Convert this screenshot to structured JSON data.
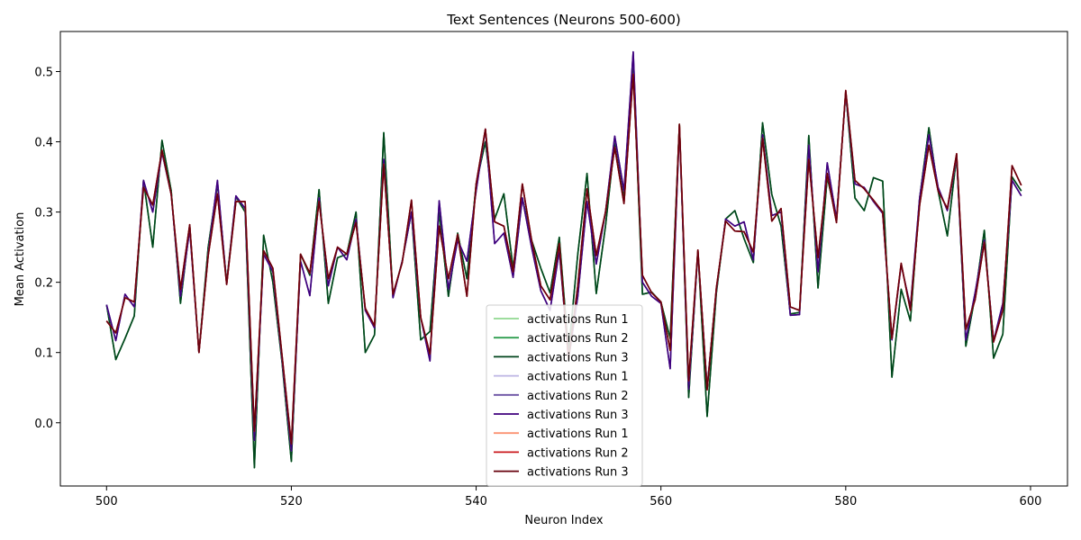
{
  "chart_data": {
    "type": "line",
    "title": "Text Sentences (Neurons 500-600)",
    "xlabel": "Neuron Index",
    "ylabel": "Mean Activation",
    "xlim": [
      495,
      604
    ],
    "ylim": [
      -0.09,
      0.557
    ],
    "xticks": [
      500,
      520,
      540,
      560,
      580,
      600
    ],
    "yticks": [
      0.0,
      0.1,
      0.2,
      0.3,
      0.4,
      0.5
    ],
    "ytick_labels": [
      "0.0",
      "0.1",
      "0.2",
      "0.3",
      "0.4",
      "0.5"
    ],
    "grid": false,
    "legend_position": "lower center",
    "x_start": 500,
    "series": [
      {
        "name": "activations Run 1",
        "color": "#90d890",
        "values": [
          0.168,
          0.09,
          0.12,
          0.152,
          0.345,
          0.25,
          0.402,
          0.33,
          0.17,
          0.28,
          0.1,
          0.25,
          0.34,
          0.2,
          0.322,
          0.3,
          -0.064,
          0.267,
          0.2,
          0.085,
          -0.055,
          0.24,
          0.21,
          0.332,
          0.17,
          0.235,
          0.24,
          0.3,
          0.1,
          0.125,
          0.413,
          0.18,
          0.23,
          0.3,
          0.118,
          0.13,
          0.3,
          0.18,
          0.27,
          0.205,
          0.34,
          0.4,
          0.29,
          0.326,
          0.22,
          0.32,
          0.26,
          0.22,
          0.185,
          0.264,
          0.1,
          0.24,
          0.355,
          0.184,
          0.28,
          0.4,
          0.32,
          0.51,
          0.183,
          0.186,
          0.172,
          0.12,
          0.425,
          0.036,
          0.245,
          0.009,
          0.185,
          0.29,
          0.302,
          0.262,
          0.228,
          0.427,
          0.325,
          0.28,
          0.155,
          0.157,
          0.409,
          0.192,
          0.35,
          0.29,
          0.47,
          0.32,
          0.302,
          0.349,
          0.344,
          0.065,
          0.19,
          0.145,
          0.32,
          0.42,
          0.33,
          0.266,
          0.38,
          0.109,
          0.18,
          0.274,
          0.092,
          0.126,
          0.35,
          0.33
        ]
      },
      {
        "name": "activations Run 2",
        "color": "#2e9e4f",
        "values": [
          0.168,
          0.09,
          0.12,
          0.152,
          0.345,
          0.25,
          0.402,
          0.33,
          0.17,
          0.28,
          0.1,
          0.25,
          0.34,
          0.2,
          0.322,
          0.3,
          -0.064,
          0.267,
          0.2,
          0.085,
          -0.055,
          0.24,
          0.21,
          0.332,
          0.17,
          0.235,
          0.24,
          0.3,
          0.1,
          0.125,
          0.413,
          0.18,
          0.23,
          0.3,
          0.118,
          0.13,
          0.3,
          0.18,
          0.27,
          0.205,
          0.34,
          0.4,
          0.29,
          0.326,
          0.22,
          0.32,
          0.26,
          0.22,
          0.185,
          0.264,
          0.1,
          0.24,
          0.355,
          0.184,
          0.28,
          0.4,
          0.32,
          0.51,
          0.183,
          0.186,
          0.172,
          0.12,
          0.425,
          0.036,
          0.245,
          0.009,
          0.185,
          0.29,
          0.302,
          0.262,
          0.228,
          0.427,
          0.325,
          0.28,
          0.155,
          0.157,
          0.409,
          0.192,
          0.35,
          0.29,
          0.47,
          0.32,
          0.302,
          0.349,
          0.344,
          0.065,
          0.19,
          0.145,
          0.32,
          0.42,
          0.33,
          0.266,
          0.38,
          0.109,
          0.18,
          0.274,
          0.092,
          0.126,
          0.35,
          0.33
        ]
      },
      {
        "name": "activations Run 3",
        "color": "#00441b",
        "values": [
          0.168,
          0.09,
          0.12,
          0.152,
          0.345,
          0.25,
          0.402,
          0.33,
          0.17,
          0.28,
          0.1,
          0.25,
          0.34,
          0.2,
          0.322,
          0.3,
          -0.064,
          0.267,
          0.2,
          0.085,
          -0.055,
          0.24,
          0.21,
          0.332,
          0.17,
          0.235,
          0.24,
          0.3,
          0.1,
          0.125,
          0.413,
          0.18,
          0.23,
          0.3,
          0.118,
          0.13,
          0.3,
          0.18,
          0.27,
          0.205,
          0.34,
          0.4,
          0.29,
          0.326,
          0.22,
          0.32,
          0.26,
          0.22,
          0.185,
          0.264,
          0.1,
          0.24,
          0.355,
          0.184,
          0.28,
          0.4,
          0.32,
          0.51,
          0.183,
          0.186,
          0.172,
          0.12,
          0.425,
          0.036,
          0.245,
          0.009,
          0.185,
          0.29,
          0.302,
          0.262,
          0.228,
          0.427,
          0.325,
          0.28,
          0.155,
          0.157,
          0.409,
          0.192,
          0.35,
          0.29,
          0.47,
          0.32,
          0.302,
          0.349,
          0.344,
          0.065,
          0.19,
          0.145,
          0.32,
          0.42,
          0.33,
          0.266,
          0.38,
          0.109,
          0.18,
          0.274,
          0.092,
          0.126,
          0.35,
          0.33
        ]
      },
      {
        "name": "activations Run 1",
        "color": "#bcb4e3",
        "values": [
          0.168,
          0.117,
          0.183,
          0.165,
          0.345,
          0.3,
          0.385,
          0.325,
          0.18,
          0.275,
          0.1,
          0.24,
          0.345,
          0.197,
          0.323,
          0.305,
          -0.025,
          0.24,
          0.215,
          0.09,
          -0.04,
          0.23,
          0.181,
          0.32,
          0.195,
          0.25,
          0.232,
          0.29,
          0.16,
          0.135,
          0.375,
          0.178,
          0.23,
          0.3,
          0.15,
          0.088,
          0.316,
          0.19,
          0.26,
          0.23,
          0.33,
          0.418,
          0.255,
          0.27,
          0.207,
          0.32,
          0.25,
          0.188,
          0.16,
          0.245,
          0.09,
          0.18,
          0.315,
          0.226,
          0.3,
          0.408,
          0.33,
          0.528,
          0.2,
          0.18,
          0.17,
          0.077,
          0.42,
          0.048,
          0.243,
          0.05,
          0.19,
          0.29,
          0.28,
          0.286,
          0.232,
          0.41,
          0.295,
          0.3,
          0.153,
          0.154,
          0.395,
          0.215,
          0.37,
          0.29,
          0.47,
          0.34,
          0.335,
          0.315,
          0.298,
          0.118,
          0.225,
          0.165,
          0.32,
          0.41,
          0.335,
          0.302,
          0.38,
          0.118,
          0.185,
          0.26,
          0.116,
          0.17,
          0.345,
          0.323
        ]
      },
      {
        "name": "activations Run 2",
        "color": "#6a51a3",
        "values": [
          0.168,
          0.117,
          0.183,
          0.165,
          0.345,
          0.3,
          0.385,
          0.325,
          0.18,
          0.275,
          0.1,
          0.24,
          0.345,
          0.197,
          0.323,
          0.305,
          -0.025,
          0.24,
          0.215,
          0.09,
          -0.04,
          0.23,
          0.181,
          0.32,
          0.195,
          0.25,
          0.232,
          0.29,
          0.16,
          0.135,
          0.375,
          0.178,
          0.23,
          0.3,
          0.15,
          0.088,
          0.316,
          0.19,
          0.26,
          0.23,
          0.33,
          0.418,
          0.255,
          0.27,
          0.207,
          0.32,
          0.25,
          0.188,
          0.16,
          0.245,
          0.09,
          0.18,
          0.315,
          0.226,
          0.3,
          0.408,
          0.33,
          0.528,
          0.2,
          0.18,
          0.17,
          0.077,
          0.42,
          0.048,
          0.243,
          0.05,
          0.19,
          0.29,
          0.28,
          0.286,
          0.232,
          0.41,
          0.295,
          0.3,
          0.153,
          0.154,
          0.395,
          0.215,
          0.37,
          0.29,
          0.47,
          0.34,
          0.335,
          0.315,
          0.298,
          0.118,
          0.225,
          0.165,
          0.32,
          0.41,
          0.335,
          0.302,
          0.38,
          0.118,
          0.185,
          0.26,
          0.116,
          0.17,
          0.345,
          0.323
        ]
      },
      {
        "name": "activations Run 3",
        "color": "#3f007d",
        "values": [
          0.168,
          0.117,
          0.183,
          0.165,
          0.345,
          0.3,
          0.385,
          0.325,
          0.18,
          0.275,
          0.1,
          0.24,
          0.345,
          0.197,
          0.323,
          0.305,
          -0.025,
          0.24,
          0.215,
          0.09,
          -0.04,
          0.23,
          0.181,
          0.32,
          0.195,
          0.25,
          0.232,
          0.29,
          0.16,
          0.135,
          0.375,
          0.178,
          0.23,
          0.3,
          0.15,
          0.088,
          0.316,
          0.19,
          0.26,
          0.23,
          0.33,
          0.418,
          0.255,
          0.27,
          0.207,
          0.32,
          0.25,
          0.188,
          0.16,
          0.245,
          0.09,
          0.18,
          0.315,
          0.226,
          0.3,
          0.408,
          0.33,
          0.528,
          0.2,
          0.18,
          0.17,
          0.077,
          0.42,
          0.048,
          0.243,
          0.05,
          0.19,
          0.29,
          0.28,
          0.286,
          0.232,
          0.41,
          0.295,
          0.3,
          0.153,
          0.154,
          0.395,
          0.215,
          0.37,
          0.29,
          0.47,
          0.34,
          0.335,
          0.315,
          0.298,
          0.118,
          0.225,
          0.165,
          0.32,
          0.41,
          0.335,
          0.302,
          0.38,
          0.118,
          0.185,
          0.26,
          0.116,
          0.17,
          0.345,
          0.323
        ]
      },
      {
        "name": "activations Run 1",
        "color": "#fc9272",
        "values": [
          0.145,
          0.128,
          0.178,
          0.172,
          0.335,
          0.31,
          0.388,
          0.325,
          0.19,
          0.282,
          0.1,
          0.238,
          0.326,
          0.197,
          0.315,
          0.315,
          -0.012,
          0.245,
          0.22,
          0.095,
          -0.03,
          0.24,
          0.213,
          0.315,
          0.205,
          0.25,
          0.24,
          0.285,
          0.163,
          0.138,
          0.368,
          0.183,
          0.228,
          0.317,
          0.15,
          0.098,
          0.28,
          0.205,
          0.268,
          0.18,
          0.34,
          0.418,
          0.286,
          0.28,
          0.215,
          0.34,
          0.26,
          0.195,
          0.175,
          0.255,
          0.09,
          0.195,
          0.333,
          0.238,
          0.3,
          0.392,
          0.312,
          0.496,
          0.21,
          0.185,
          0.172,
          0.103,
          0.425,
          0.06,
          0.246,
          0.047,
          0.192,
          0.287,
          0.273,
          0.272,
          0.243,
          0.405,
          0.287,
          0.305,
          0.165,
          0.16,
          0.375,
          0.235,
          0.355,
          0.285,
          0.473,
          0.345,
          0.333,
          0.317,
          0.3,
          0.12,
          0.227,
          0.16,
          0.31,
          0.395,
          0.33,
          0.305,
          0.383,
          0.133,
          0.175,
          0.257,
          0.115,
          0.16,
          0.366,
          0.338
        ]
      },
      {
        "name": "activations Run 2",
        "color": "#cb181d",
        "values": [
          0.145,
          0.128,
          0.178,
          0.172,
          0.335,
          0.31,
          0.388,
          0.325,
          0.19,
          0.282,
          0.1,
          0.238,
          0.326,
          0.197,
          0.315,
          0.315,
          -0.012,
          0.245,
          0.22,
          0.095,
          -0.03,
          0.24,
          0.213,
          0.315,
          0.205,
          0.25,
          0.24,
          0.285,
          0.163,
          0.138,
          0.368,
          0.183,
          0.228,
          0.317,
          0.15,
          0.098,
          0.28,
          0.205,
          0.268,
          0.18,
          0.34,
          0.418,
          0.286,
          0.28,
          0.215,
          0.34,
          0.26,
          0.195,
          0.175,
          0.255,
          0.09,
          0.195,
          0.333,
          0.238,
          0.3,
          0.392,
          0.312,
          0.496,
          0.21,
          0.185,
          0.172,
          0.103,
          0.425,
          0.06,
          0.246,
          0.047,
          0.192,
          0.287,
          0.273,
          0.272,
          0.243,
          0.405,
          0.287,
          0.305,
          0.165,
          0.16,
          0.375,
          0.235,
          0.355,
          0.285,
          0.473,
          0.345,
          0.333,
          0.317,
          0.3,
          0.12,
          0.227,
          0.16,
          0.31,
          0.395,
          0.33,
          0.305,
          0.383,
          0.133,
          0.175,
          0.257,
          0.115,
          0.16,
          0.366,
          0.338
        ]
      },
      {
        "name": "activations Run 3",
        "color": "#67000d",
        "values": [
          0.145,
          0.128,
          0.178,
          0.172,
          0.335,
          0.31,
          0.388,
          0.325,
          0.19,
          0.282,
          0.1,
          0.238,
          0.326,
          0.197,
          0.315,
          0.315,
          -0.012,
          0.245,
          0.22,
          0.095,
          -0.03,
          0.24,
          0.213,
          0.315,
          0.205,
          0.25,
          0.24,
          0.285,
          0.163,
          0.138,
          0.368,
          0.183,
          0.228,
          0.317,
          0.15,
          0.098,
          0.28,
          0.205,
          0.268,
          0.18,
          0.34,
          0.418,
          0.286,
          0.28,
          0.215,
          0.34,
          0.26,
          0.195,
          0.175,
          0.255,
          0.09,
          0.195,
          0.333,
          0.238,
          0.3,
          0.392,
          0.312,
          0.496,
          0.21,
          0.185,
          0.172,
          0.103,
          0.425,
          0.06,
          0.246,
          0.047,
          0.192,
          0.287,
          0.273,
          0.272,
          0.243,
          0.405,
          0.287,
          0.305,
          0.165,
          0.16,
          0.375,
          0.235,
          0.355,
          0.285,
          0.473,
          0.345,
          0.333,
          0.317,
          0.3,
          0.12,
          0.227,
          0.16,
          0.31,
          0.395,
          0.33,
          0.305,
          0.383,
          0.133,
          0.175,
          0.257,
          0.115,
          0.16,
          0.366,
          0.338
        ]
      }
    ]
  }
}
